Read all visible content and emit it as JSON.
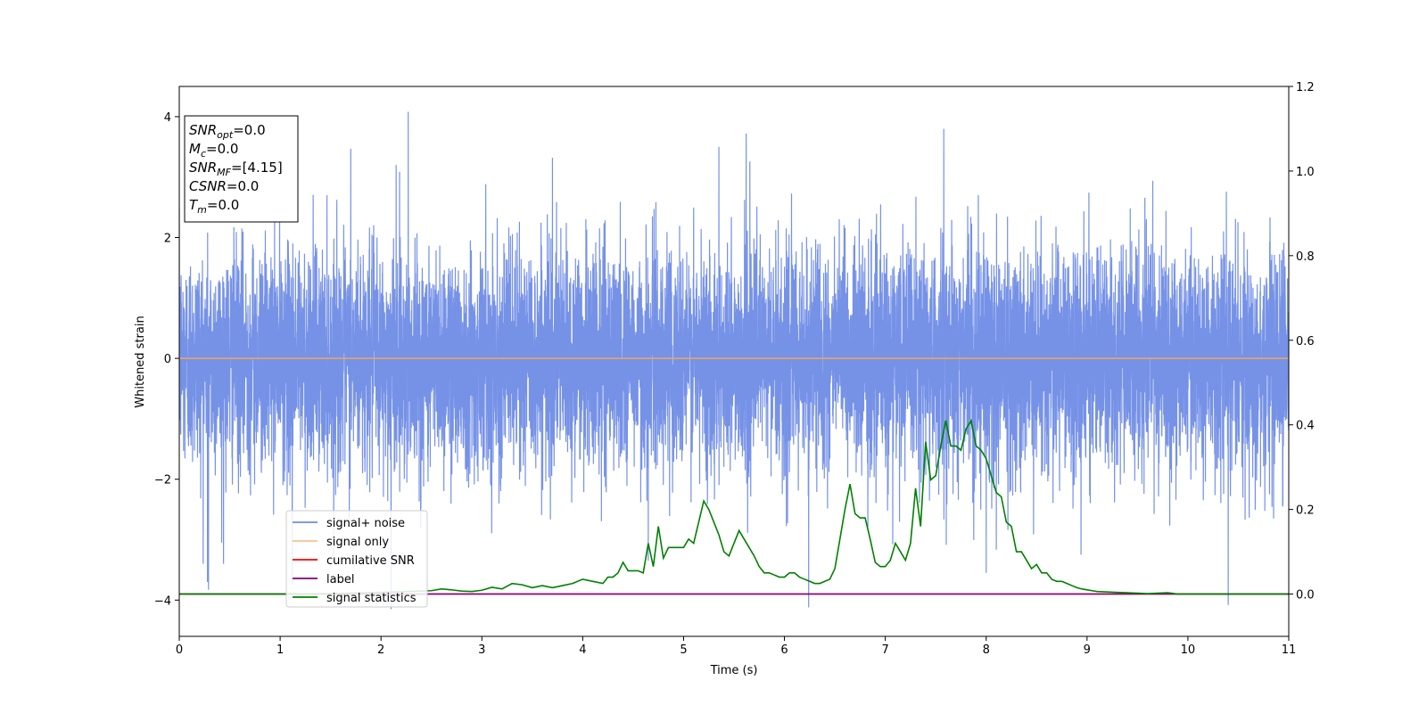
{
  "chart_data": {
    "type": "line",
    "xlabel": "Time (s)",
    "ylabel": "Whitened strain",
    "xlim": [
      0,
      11
    ],
    "ylim": [
      -4.6,
      4.5
    ],
    "y2lim": [
      -0.1,
      1.2
    ],
    "x_ticks": [
      0,
      1,
      2,
      3,
      4,
      5,
      6,
      7,
      8,
      9,
      10,
      11
    ],
    "y_ticks": [
      -4,
      -2,
      0,
      2,
      4
    ],
    "y2_ticks": [
      0.0,
      0.2,
      0.4,
      0.6,
      0.8,
      1.0,
      1.2
    ],
    "grid": false,
    "legend_position": "lower-left",
    "colors": {
      "signal_noise": "#6f8ce6",
      "signal_only": "#f5a55a",
      "cumulative_snr": "#ff0000",
      "label": "#800080",
      "signal_statistics": "#008000"
    },
    "info_box": {
      "lines": [
        {
          "sym": "SNR",
          "sub": "opt",
          "value": "=0.0"
        },
        {
          "sym": "M",
          "sub": "c",
          "value": "=0.0"
        },
        {
          "sym": "SNR",
          "sub": "MF",
          "value": "=[4.15]"
        },
        {
          "sym": "CSNR",
          "sub": "",
          "value": "=0.0"
        },
        {
          "sym": "T",
          "sub": "m",
          "value": "=0.0"
        }
      ]
    },
    "series": [
      {
        "name": "signal+ noise",
        "axis": "left",
        "kind": "noise",
        "sigma": 0.9,
        "spikes": [
          {
            "x": 0.28,
            "y": -3.7
          },
          {
            "x": 0.29,
            "y": -3.83
          },
          {
            "x": 0.42,
            "y": -3.05
          },
          {
            "x": 1.12,
            "y": -3.72
          },
          {
            "x": 1.7,
            "y": 3.47
          },
          {
            "x": 2.1,
            "y": -4.15
          },
          {
            "x": 2.15,
            "y": 3.2
          },
          {
            "x": 2.27,
            "y": 4.08
          },
          {
            "x": 3.7,
            "y": 3.32
          },
          {
            "x": 4.65,
            "y": -3.35
          },
          {
            "x": 5.35,
            "y": 3.5
          },
          {
            "x": 5.62,
            "y": 3.72
          },
          {
            "x": 6.24,
            "y": -4.12
          },
          {
            "x": 7.58,
            "y": 3.8
          },
          {
            "x": 8.0,
            "y": -3.55
          },
          {
            "x": 10.4,
            "y": -4.08
          }
        ]
      },
      {
        "name": "signal only",
        "axis": "left",
        "x": [
          0,
          11
        ],
        "y": [
          0,
          0
        ]
      },
      {
        "name": "cumilative SNR",
        "axis": "right",
        "x": [
          0,
          11
        ],
        "y": [
          0,
          0
        ]
      },
      {
        "name": "label",
        "axis": "right",
        "x": [
          0,
          11
        ],
        "y": [
          0,
          0
        ]
      },
      {
        "name": "signal statistics",
        "axis": "right",
        "x": [
          0,
          0.5,
          1.0,
          1.5,
          2.0,
          2.5,
          2.6,
          2.7,
          2.8,
          2.9,
          3.0,
          3.1,
          3.2,
          3.3,
          3.4,
          3.5,
          3.6,
          3.7,
          3.8,
          3.9,
          4.0,
          4.1,
          4.2,
          4.25,
          4.3,
          4.35,
          4.4,
          4.45,
          4.5,
          4.55,
          4.6,
          4.65,
          4.7,
          4.75,
          4.8,
          4.85,
          4.9,
          4.95,
          5.0,
          5.05,
          5.1,
          5.15,
          5.2,
          5.25,
          5.3,
          5.35,
          5.4,
          5.45,
          5.5,
          5.55,
          5.6,
          5.65,
          5.7,
          5.75,
          5.8,
          5.85,
          5.9,
          5.95,
          6.0,
          6.05,
          6.1,
          6.15,
          6.2,
          6.25,
          6.3,
          6.35,
          6.4,
          6.45,
          6.5,
          6.55,
          6.6,
          6.65,
          6.7,
          6.75,
          6.8,
          6.85,
          6.9,
          6.95,
          7.0,
          7.05,
          7.1,
          7.15,
          7.2,
          7.25,
          7.3,
          7.35,
          7.4,
          7.45,
          7.5,
          7.55,
          7.6,
          7.65,
          7.7,
          7.75,
          7.8,
          7.85,
          7.9,
          7.95,
          8.0,
          8.05,
          8.1,
          8.15,
          8.2,
          8.25,
          8.3,
          8.35,
          8.4,
          8.45,
          8.5,
          8.55,
          8.6,
          8.65,
          8.7,
          8.75,
          8.8,
          8.85,
          8.9,
          8.95,
          9.0,
          9.05,
          9.1,
          9.2,
          9.3,
          9.4,
          9.5,
          9.6,
          9.7,
          9.8,
          9.9,
          10.0,
          10.2,
          10.4,
          10.6,
          10.8,
          11.0
        ],
        "y": [
          0.0,
          0.0,
          0.0,
          0.001,
          0.004,
          0.008,
          0.012,
          0.01,
          0.007,
          0.006,
          0.009,
          0.016,
          0.012,
          0.025,
          0.022,
          0.015,
          0.02,
          0.015,
          0.02,
          0.025,
          0.035,
          0.03,
          0.025,
          0.04,
          0.04,
          0.05,
          0.075,
          0.055,
          0.055,
          0.055,
          0.05,
          0.12,
          0.065,
          0.16,
          0.085,
          0.11,
          0.11,
          0.11,
          0.11,
          0.13,
          0.12,
          0.17,
          0.22,
          0.2,
          0.17,
          0.14,
          0.1,
          0.09,
          0.12,
          0.15,
          0.13,
          0.11,
          0.09,
          0.065,
          0.05,
          0.05,
          0.045,
          0.04,
          0.04,
          0.05,
          0.05,
          0.04,
          0.035,
          0.03,
          0.025,
          0.025,
          0.03,
          0.035,
          0.06,
          0.13,
          0.2,
          0.26,
          0.19,
          0.18,
          0.18,
          0.13,
          0.075,
          0.065,
          0.065,
          0.08,
          0.12,
          0.1,
          0.08,
          0.12,
          0.25,
          0.16,
          0.36,
          0.27,
          0.28,
          0.35,
          0.41,
          0.35,
          0.35,
          0.34,
          0.39,
          0.41,
          0.35,
          0.34,
          0.32,
          0.28,
          0.24,
          0.23,
          0.17,
          0.16,
          0.1,
          0.1,
          0.08,
          0.06,
          0.07,
          0.05,
          0.05,
          0.035,
          0.03,
          0.03,
          0.025,
          0.02,
          0.015,
          0.012,
          0.01,
          0.008,
          0.006,
          0.005,
          0.004,
          0.003,
          0.002,
          0.001,
          0.002,
          0.003,
          0.0,
          0.0,
          0.0,
          0.0,
          0.0,
          0.0,
          0.0
        ]
      }
    ]
  }
}
